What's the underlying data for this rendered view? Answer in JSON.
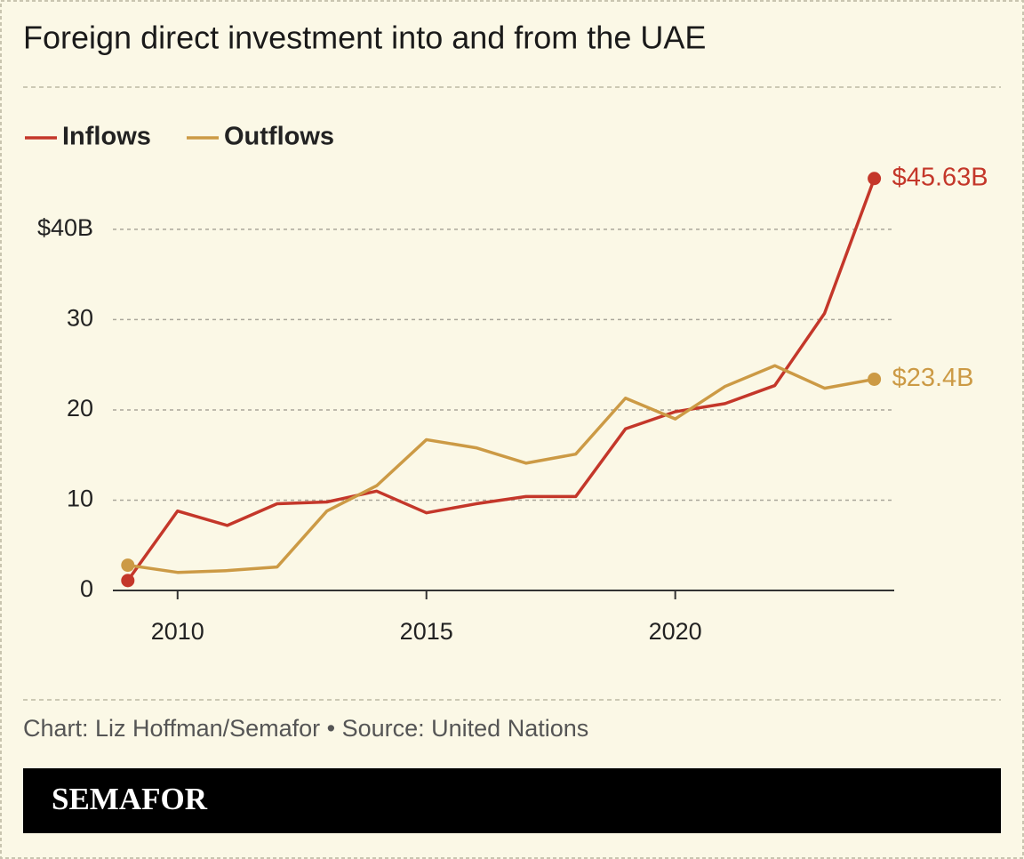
{
  "chart_data": {
    "type": "line",
    "title": "Foreign direct investment into and from the UAE",
    "x": [
      2009,
      2010,
      2011,
      2012,
      2013,
      2014,
      2015,
      2016,
      2017,
      2018,
      2019,
      2020,
      2021,
      2022,
      2023,
      2024
    ],
    "series": [
      {
        "name": "Inflows",
        "color": "#c4372a",
        "values": [
          1.1,
          8.8,
          7.2,
          9.6,
          9.8,
          11.0,
          8.6,
          9.6,
          10.4,
          10.4,
          17.9,
          19.8,
          20.7,
          22.7,
          30.7,
          45.63
        ],
        "value_labels": [
          null,
          null,
          null,
          null,
          null,
          null,
          null,
          null,
          null,
          null,
          null,
          null,
          null,
          null,
          null,
          "$45.63B"
        ]
      },
      {
        "name": "Outflows",
        "color": "#cc9a45",
        "values": [
          2.8,
          2.0,
          2.2,
          2.6,
          8.8,
          11.6,
          16.7,
          15.8,
          14.1,
          15.1,
          21.3,
          19.0,
          22.6,
          24.9,
          22.4,
          23.4
        ],
        "value_labels": [
          null,
          null,
          null,
          null,
          null,
          null,
          null,
          null,
          null,
          null,
          null,
          null,
          null,
          null,
          null,
          "$23.4B"
        ]
      }
    ],
    "xlim": [
      2008.7,
      2024.4
    ],
    "xticks": [
      2010,
      2015,
      2020
    ],
    "ylim": [
      0,
      46
    ],
    "yticks": [
      0,
      10,
      20,
      30,
      {
        "value": 40,
        "label": "$40B"
      }
    ],
    "grid": true,
    "legend": "top-left"
  },
  "footer": {
    "credit": "Chart: Liz Hoffman/Semafor • Source: United Nations",
    "brand": "SEMAFOR"
  }
}
